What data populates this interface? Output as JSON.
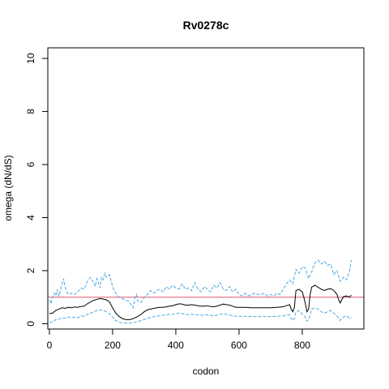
{
  "chart_data": {
    "type": "line",
    "title": "Rv0278c",
    "xlabel": "codon",
    "ylabel": "omega (dN/dS)",
    "xlim": [
      -5,
      995
    ],
    "ylim": [
      -0.2,
      10.4
    ],
    "x_ticks": [
      0,
      200,
      400,
      600,
      800
    ],
    "y_ticks": [
      0,
      2,
      4,
      6,
      8,
      10
    ],
    "reference_line": {
      "y": 1,
      "color": "#d9536f"
    },
    "series": [
      {
        "role": "estimate",
        "color": "#000000",
        "style": "solid",
        "points": [
          [
            0,
            0.38
          ],
          [
            10,
            0.4
          ],
          [
            20,
            0.5
          ],
          [
            30,
            0.55
          ],
          [
            40,
            0.6
          ],
          [
            50,
            0.58
          ],
          [
            60,
            0.62
          ],
          [
            70,
            0.6
          ],
          [
            80,
            0.63
          ],
          [
            90,
            0.62
          ],
          [
            100,
            0.65
          ],
          [
            110,
            0.66
          ],
          [
            120,
            0.75
          ],
          [
            130,
            0.82
          ],
          [
            140,
            0.88
          ],
          [
            150,
            0.92
          ],
          [
            160,
            0.95
          ],
          [
            170,
            0.93
          ],
          [
            180,
            0.9
          ],
          [
            190,
            0.82
          ],
          [
            200,
            0.6
          ],
          [
            210,
            0.4
          ],
          [
            220,
            0.28
          ],
          [
            230,
            0.2
          ],
          [
            240,
            0.16
          ],
          [
            250,
            0.15
          ],
          [
            260,
            0.17
          ],
          [
            270,
            0.22
          ],
          [
            280,
            0.28
          ],
          [
            290,
            0.35
          ],
          [
            300,
            0.45
          ],
          [
            310,
            0.52
          ],
          [
            320,
            0.55
          ],
          [
            330,
            0.58
          ],
          [
            340,
            0.6
          ],
          [
            350,
            0.62
          ],
          [
            360,
            0.62
          ],
          [
            370,
            0.64
          ],
          [
            380,
            0.66
          ],
          [
            390,
            0.68
          ],
          [
            400,
            0.72
          ],
          [
            410,
            0.75
          ],
          [
            420,
            0.74
          ],
          [
            430,
            0.7
          ],
          [
            440,
            0.7
          ],
          [
            450,
            0.72
          ],
          [
            460,
            0.7
          ],
          [
            470,
            0.68
          ],
          [
            480,
            0.66
          ],
          [
            490,
            0.66
          ],
          [
            500,
            0.68
          ],
          [
            510,
            0.65
          ],
          [
            520,
            0.64
          ],
          [
            530,
            0.66
          ],
          [
            540,
            0.7
          ],
          [
            550,
            0.74
          ],
          [
            560,
            0.72
          ],
          [
            570,
            0.7
          ],
          [
            580,
            0.66
          ],
          [
            590,
            0.62
          ],
          [
            600,
            0.62
          ],
          [
            620,
            0.62
          ],
          [
            640,
            0.6
          ],
          [
            660,
            0.6
          ],
          [
            680,
            0.6
          ],
          [
            700,
            0.6
          ],
          [
            720,
            0.62
          ],
          [
            740,
            0.64
          ],
          [
            750,
            0.68
          ],
          [
            760,
            0.72
          ],
          [
            765,
            0.55
          ],
          [
            770,
            0.45
          ],
          [
            775,
            0.6
          ],
          [
            780,
            1.25
          ],
          [
            790,
            1.3
          ],
          [
            800,
            1.2
          ],
          [
            805,
            1.0
          ],
          [
            810,
            0.75
          ],
          [
            815,
            0.45
          ],
          [
            820,
            0.55
          ],
          [
            825,
            1.1
          ],
          [
            830,
            1.38
          ],
          [
            840,
            1.45
          ],
          [
            850,
            1.38
          ],
          [
            860,
            1.3
          ],
          [
            870,
            1.25
          ],
          [
            880,
            1.3
          ],
          [
            890,
            1.32
          ],
          [
            900,
            1.25
          ],
          [
            910,
            1.1
          ],
          [
            915,
            0.9
          ],
          [
            920,
            0.78
          ],
          [
            930,
            1.02
          ],
          [
            940,
            1.05
          ],
          [
            950,
            1.0
          ],
          [
            955,
            1.08
          ]
        ]
      },
      {
        "role": "upper-bound",
        "color": "#4aa8e0",
        "style": "dashed",
        "points": [
          [
            0,
            0.9
          ],
          [
            5,
            0.75
          ],
          [
            10,
            1.0
          ],
          [
            15,
            1.15
          ],
          [
            20,
            1.05
          ],
          [
            25,
            1.3
          ],
          [
            30,
            1.05
          ],
          [
            35,
            1.25
          ],
          [
            40,
            1.5
          ],
          [
            45,
            1.7
          ],
          [
            50,
            1.35
          ],
          [
            55,
            1.2
          ],
          [
            60,
            1.1
          ],
          [
            70,
            1.15
          ],
          [
            80,
            1.1
          ],
          [
            90,
            1.2
          ],
          [
            100,
            1.35
          ],
          [
            110,
            1.3
          ],
          [
            120,
            1.6
          ],
          [
            130,
            1.75
          ],
          [
            140,
            1.55
          ],
          [
            145,
            1.4
          ],
          [
            150,
            1.7
          ],
          [
            155,
            1.55
          ],
          [
            160,
            1.35
          ],
          [
            165,
            1.75
          ],
          [
            170,
            1.65
          ],
          [
            175,
            1.9
          ],
          [
            180,
            1.75
          ],
          [
            190,
            1.85
          ],
          [
            200,
            1.4
          ],
          [
            210,
            1.15
          ],
          [
            220,
            1.0
          ],
          [
            230,
            0.95
          ],
          [
            240,
            0.9
          ],
          [
            250,
            0.85
          ],
          [
            260,
            0.7
          ],
          [
            265,
            0.6
          ],
          [
            270,
            0.95
          ],
          [
            275,
            1.1
          ],
          [
            280,
            0.85
          ],
          [
            290,
            0.8
          ],
          [
            300,
            1.0
          ],
          [
            310,
            1.1
          ],
          [
            320,
            1.25
          ],
          [
            330,
            1.15
          ],
          [
            340,
            1.25
          ],
          [
            350,
            1.3
          ],
          [
            360,
            1.2
          ],
          [
            370,
            1.4
          ],
          [
            380,
            1.3
          ],
          [
            390,
            1.45
          ],
          [
            400,
            1.35
          ],
          [
            410,
            1.3
          ],
          [
            420,
            1.5
          ],
          [
            430,
            1.3
          ],
          [
            440,
            1.35
          ],
          [
            450,
            1.25
          ],
          [
            460,
            1.55
          ],
          [
            470,
            1.3
          ],
          [
            480,
            1.2
          ],
          [
            490,
            1.4
          ],
          [
            500,
            1.3
          ],
          [
            510,
            1.2
          ],
          [
            520,
            1.45
          ],
          [
            530,
            1.35
          ],
          [
            540,
            1.55
          ],
          [
            550,
            1.3
          ],
          [
            560,
            1.25
          ],
          [
            570,
            1.4
          ],
          [
            580,
            1.2
          ],
          [
            590,
            1.3
          ],
          [
            600,
            1.1
          ],
          [
            610,
            1.05
          ],
          [
            620,
            1.15
          ],
          [
            630,
            1.05
          ],
          [
            640,
            1.1
          ],
          [
            650,
            1.15
          ],
          [
            660,
            1.1
          ],
          [
            670,
            1.1
          ],
          [
            680,
            1.15
          ],
          [
            690,
            1.05
          ],
          [
            700,
            1.1
          ],
          [
            710,
            1.05
          ],
          [
            720,
            1.15
          ],
          [
            730,
            1.1
          ],
          [
            740,
            1.3
          ],
          [
            750,
            1.5
          ],
          [
            760,
            1.65
          ],
          [
            770,
            1.5
          ],
          [
            780,
            2.05
          ],
          [
            790,
            1.9
          ],
          [
            800,
            2.15
          ],
          [
            810,
            2.1
          ],
          [
            820,
            1.7
          ],
          [
            830,
            1.95
          ],
          [
            840,
            2.3
          ],
          [
            850,
            2.4
          ],
          [
            860,
            2.25
          ],
          [
            870,
            2.35
          ],
          [
            880,
            2.2
          ],
          [
            890,
            2.25
          ],
          [
            900,
            1.85
          ],
          [
            910,
            2.0
          ],
          [
            920,
            1.6
          ],
          [
            930,
            1.75
          ],
          [
            940,
            1.65
          ],
          [
            950,
            2.0
          ],
          [
            955,
            2.4
          ]
        ]
      },
      {
        "role": "lower-bound",
        "color": "#4aa8e0",
        "style": "dashed",
        "points": [
          [
            0,
            0.05
          ],
          [
            10,
            0.06
          ],
          [
            20,
            0.15
          ],
          [
            30,
            0.18
          ],
          [
            40,
            0.22
          ],
          [
            50,
            0.2
          ],
          [
            60,
            0.25
          ],
          [
            70,
            0.22
          ],
          [
            80,
            0.25
          ],
          [
            90,
            0.22
          ],
          [
            100,
            0.3
          ],
          [
            110,
            0.28
          ],
          [
            120,
            0.35
          ],
          [
            130,
            0.4
          ],
          [
            140,
            0.45
          ],
          [
            150,
            0.5
          ],
          [
            160,
            0.52
          ],
          [
            170,
            0.5
          ],
          [
            180,
            0.45
          ],
          [
            190,
            0.38
          ],
          [
            200,
            0.25
          ],
          [
            210,
            0.12
          ],
          [
            220,
            0.06
          ],
          [
            230,
            0.03
          ],
          [
            240,
            0.02
          ],
          [
            250,
            0.02
          ],
          [
            260,
            0.03
          ],
          [
            270,
            0.05
          ],
          [
            280,
            0.08
          ],
          [
            290,
            0.12
          ],
          [
            300,
            0.16
          ],
          [
            310,
            0.2
          ],
          [
            320,
            0.24
          ],
          [
            330,
            0.26
          ],
          [
            340,
            0.28
          ],
          [
            350,
            0.3
          ],
          [
            360,
            0.32
          ],
          [
            370,
            0.33
          ],
          [
            380,
            0.35
          ],
          [
            390,
            0.36
          ],
          [
            400,
            0.38
          ],
          [
            410,
            0.4
          ],
          [
            420,
            0.38
          ],
          [
            430,
            0.36
          ],
          [
            440,
            0.34
          ],
          [
            450,
            0.36
          ],
          [
            460,
            0.34
          ],
          [
            470,
            0.33
          ],
          [
            480,
            0.32
          ],
          [
            490,
            0.33
          ],
          [
            500,
            0.33
          ],
          [
            510,
            0.32
          ],
          [
            520,
            0.3
          ],
          [
            530,
            0.32
          ],
          [
            540,
            0.35
          ],
          [
            550,
            0.38
          ],
          [
            560,
            0.35
          ],
          [
            570,
            0.33
          ],
          [
            580,
            0.3
          ],
          [
            590,
            0.28
          ],
          [
            600,
            0.28
          ],
          [
            620,
            0.28
          ],
          [
            640,
            0.27
          ],
          [
            660,
            0.27
          ],
          [
            680,
            0.27
          ],
          [
            700,
            0.27
          ],
          [
            720,
            0.28
          ],
          [
            740,
            0.3
          ],
          [
            750,
            0.32
          ],
          [
            760,
            0.34
          ],
          [
            765,
            0.2
          ],
          [
            770,
            0.12
          ],
          [
            775,
            0.2
          ],
          [
            780,
            0.45
          ],
          [
            790,
            0.5
          ],
          [
            800,
            0.35
          ],
          [
            810,
            0.25
          ],
          [
            815,
            0.1
          ],
          [
            820,
            0.15
          ],
          [
            825,
            0.35
          ],
          [
            830,
            0.55
          ],
          [
            840,
            0.6
          ],
          [
            850,
            0.55
          ],
          [
            860,
            0.45
          ],
          [
            870,
            0.4
          ],
          [
            880,
            0.45
          ],
          [
            890,
            0.5
          ],
          [
            900,
            0.4
          ],
          [
            910,
            0.3
          ],
          [
            915,
            0.2
          ],
          [
            920,
            0.12
          ],
          [
            930,
            0.25
          ],
          [
            940,
            0.3
          ],
          [
            950,
            0.2
          ],
          [
            955,
            0.25
          ]
        ]
      }
    ]
  }
}
